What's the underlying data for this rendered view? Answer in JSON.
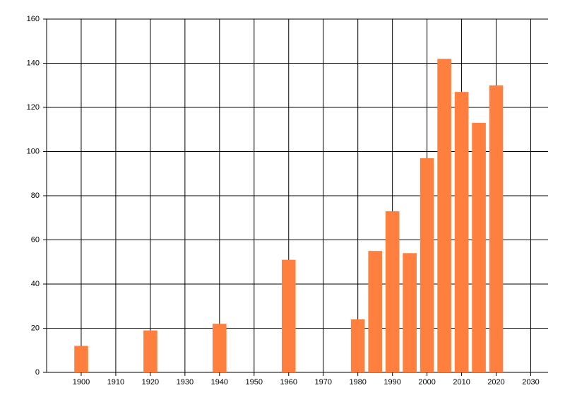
{
  "chart_data": {
    "type": "bar",
    "x": [
      1900,
      1920,
      1940,
      1960,
      1980,
      1985,
      1990,
      1995,
      2000,
      2005,
      2010,
      2015,
      2020
    ],
    "values": [
      12,
      19,
      22,
      51,
      24,
      55,
      73,
      54,
      97,
      142,
      127,
      113,
      130
    ],
    "color": "#ff7f3f",
    "xlim": [
      1890,
      2035
    ],
    "xticks": [
      1900,
      1910,
      1920,
      1930,
      1940,
      1950,
      1960,
      1970,
      1980,
      1990,
      2000,
      2010,
      2020,
      2030
    ],
    "ylim": [
      0,
      160
    ],
    "yticks": [
      0,
      20,
      40,
      60,
      80,
      100,
      120,
      140,
      160
    ],
    "grid": true
  }
}
